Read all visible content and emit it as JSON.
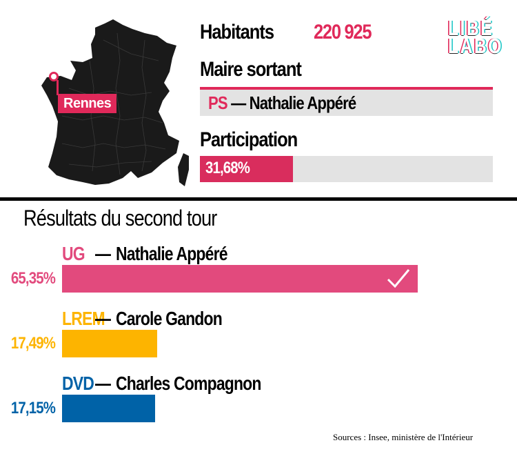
{
  "city": "Rennes",
  "habitants_label": "Habitants",
  "habitants_value": "220 925",
  "maire_label": "Maire sortant",
  "maire": {
    "party": "PS",
    "dash": "—",
    "name": "Nathalie Appéré"
  },
  "participation_label": "Participation",
  "logo": {
    "line1": "LIBÉ",
    "line2": "LABO"
  },
  "colors": {
    "accent": "#e0295a",
    "track": "#e3e3e3",
    "UG": "#e24a7d",
    "LREM": "#fdb400",
    "DVD": "#0062a7"
  },
  "chart_data": [
    {
      "type": "bar",
      "categories": [
        "Participation"
      ],
      "values": [
        31.68
      ],
      "labels": [
        "31,68%"
      ],
      "xlim": [
        0,
        100
      ]
    },
    {
      "type": "bar",
      "title": "Résultats du second tour",
      "candidates": [
        {
          "party": "UG",
          "name": "Nathalie Appéré",
          "value": 65.35,
          "label": "65,35%",
          "winner": true,
          "color": "#e24a7d"
        },
        {
          "party": "LREM",
          "name": "Carole Gandon",
          "value": 17.49,
          "label": "17,49%",
          "winner": false,
          "color": "#fdb400"
        },
        {
          "party": "DVD",
          "name": "Charles Compagnon",
          "value": 17.15,
          "label": "17,15%",
          "winner": false,
          "color": "#0062a7"
        }
      ],
      "xlim": [
        0,
        100
      ]
    }
  ],
  "sources": "Sources : Insee, ministère de l'Intérieur"
}
